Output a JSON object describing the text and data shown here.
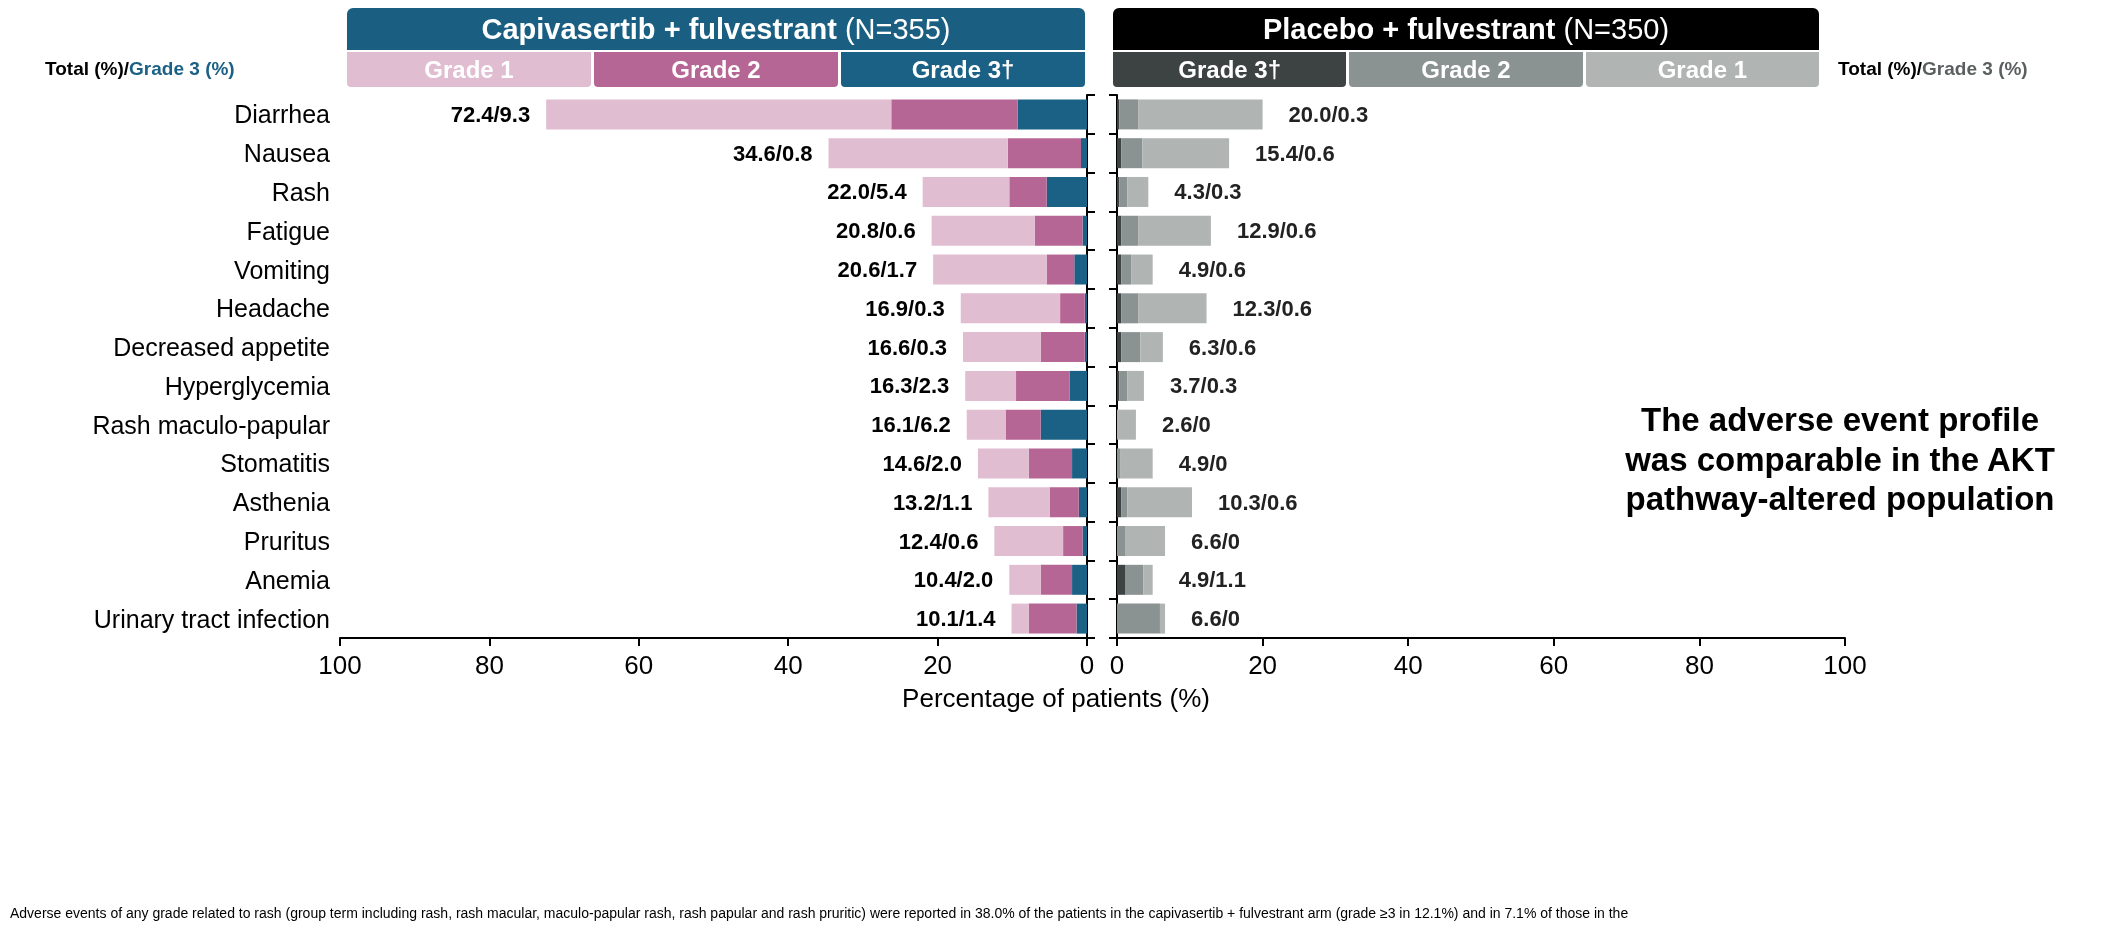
{
  "chart_data": [
    {
      "type": "bar",
      "orientation": "horizontal",
      "stacked": true,
      "title": "Capivasertib + fulvestrant (N=355)",
      "xlabel": "Percentage of patients (%)",
      "categories": [
        "Diarrhea",
        "Nausea",
        "Rash",
        "Fatigue",
        "Vomiting",
        "Headache",
        "Decreased appetite",
        "Hyperglycemia",
        "Rash maculo-papular",
        "Stomatitis",
        "Asthenia",
        "Pruritus",
        "Anemia",
        "Urinary tract infection"
      ],
      "series": [
        {
          "name": "Grade 3†",
          "color": "#1a6185",
          "values": [
            9.3,
            0.8,
            5.4,
            0.6,
            1.7,
            0.3,
            0.3,
            2.3,
            6.2,
            2.0,
            1.1,
            0.6,
            2.0,
            1.4
          ]
        },
        {
          "name": "Grade 2",
          "color": "#b66694",
          "values": [
            16.9,
            9.8,
            5.0,
            6.4,
            3.7,
            3.3,
            5.9,
            7.2,
            4.7,
            5.8,
            3.9,
            2.6,
            4.2,
            6.4
          ]
        },
        {
          "name": "Grade 1",
          "color": "#e0bdd0",
          "values": [
            46.2,
            24.0,
            11.6,
            13.8,
            15.2,
            13.3,
            10.4,
            6.8,
            5.2,
            6.8,
            8.2,
            9.2,
            4.2,
            2.3
          ]
        }
      ],
      "totals": [
        "72.4/9.3",
        "34.6/0.8",
        "22.0/5.4",
        "20.8/0.6",
        "20.6/1.7",
        "16.9/0.3",
        "16.6/0.3",
        "16.3/2.3",
        "16.1/6.2",
        "14.6/2.0",
        "13.2/1.1",
        "12.4/0.6",
        "10.4/2.0",
        "10.1/1.4"
      ],
      "xlim": [
        100,
        0
      ],
      "xticks": [
        100,
        80,
        60,
        40,
        20,
        0
      ],
      "legend": "top",
      "grid": false,
      "annotations": [
        "Total (%)/Grade 3 (%)",
        "Adverse events of any grade related to rash (group term including rash, rash macular, maculo-papular rash, rash papular and rash pruritic) were reported in 38.0% of the patients in the capivasertib + fulvestrant arm (grade ≥3 in 12.1%) and in 7.1% of those in the"
      ]
    },
    {
      "type": "bar",
      "orientation": "horizontal",
      "stacked": true,
      "title": "Placebo + fulvestrant (N=350)",
      "categories": [
        null,
        null,
        null,
        null,
        null,
        null,
        null,
        null,
        null,
        null,
        null,
        null,
        null,
        null
      ],
      "series": [
        {
          "name": "Grade 3†",
          "color": "#3d4242",
          "values": [
            0.3,
            0.6,
            0.3,
            0.6,
            0.6,
            0.6,
            0.6,
            0.3,
            0,
            0,
            0.6,
            0,
            1.1,
            0
          ]
        },
        {
          "name": "Grade 2",
          "color": "#8a9292",
          "values": [
            2.6,
            2.9,
            1.1,
            2.3,
            1.4,
            2.3,
            2.6,
            1.1,
            0,
            0.5,
            0.8,
            1.1,
            2.5,
            5.9
          ]
        },
        {
          "name": "Grade 1",
          "color": "#b0b5b4",
          "values": [
            17.1,
            11.9,
            2.9,
            10.0,
            2.9,
            9.4,
            3.1,
            2.3,
            2.6,
            4.4,
            8.9,
            5.5,
            1.3,
            0.7
          ]
        }
      ],
      "totals": [
        "20.0/0.3",
        "15.4/0.6",
        "4.3/0.3",
        "12.9/0.6",
        "4.9/0.6",
        "12.3/0.6",
        "6.3/0.6",
        "3.7/0.3",
        "2.6/0",
        "4.9/0",
        "10.3/0.6",
        "6.6/0",
        "4.9/1.1",
        "6.6/0"
      ],
      "xlim": [
        0,
        100
      ],
      "xticks": [
        0,
        20,
        40,
        60,
        80,
        100
      ],
      "legend": "top",
      "grid": false,
      "tick_labels": "x",
      "annotations": [
        "Total (%)/Grade 3 (%)",
        "The adverse event profile was comparable in the AKT pathway-altered population"
      ]
    }
  ]
}
